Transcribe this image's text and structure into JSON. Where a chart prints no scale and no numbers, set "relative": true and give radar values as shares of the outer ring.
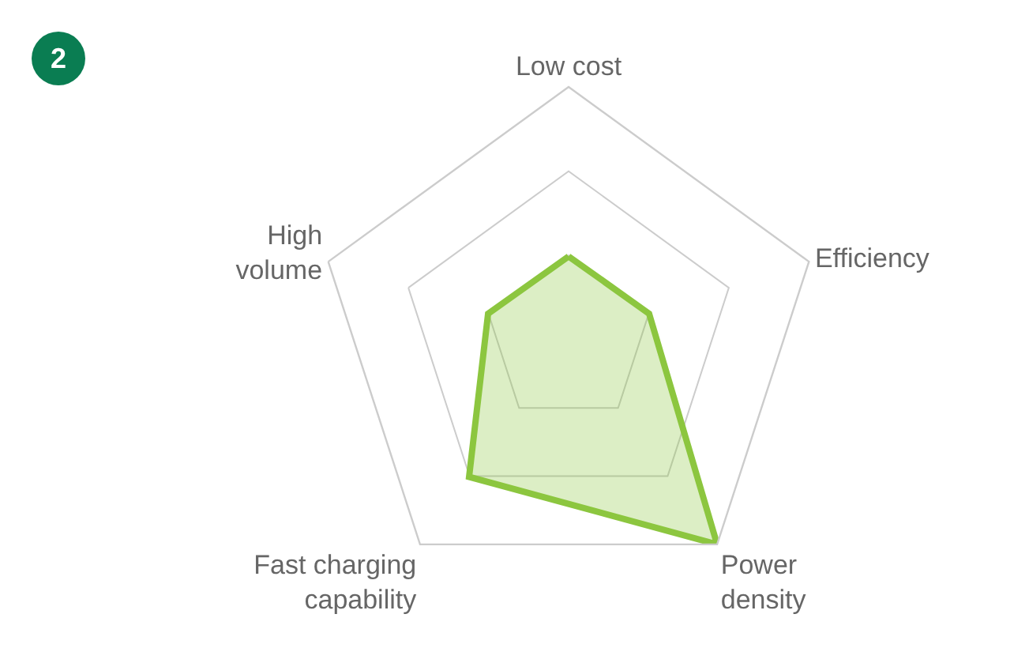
{
  "chart_data": {
    "type": "radar",
    "relative": true,
    "categories": [
      "Low cost",
      "Efficiency",
      "Power\ndensity",
      "Fast charging\ncapability",
      "High\nvolume"
    ],
    "series": [
      {
        "color": "#8cc63f",
        "values": [
          0.33,
          0.335,
          1.0,
          0.67,
          0.335
        ]
      }
    ],
    "annotations": [
      "2"
    ],
    "grid": true,
    "legend": false,
    "marker": "none",
    "line_style": "solid"
  }
}
